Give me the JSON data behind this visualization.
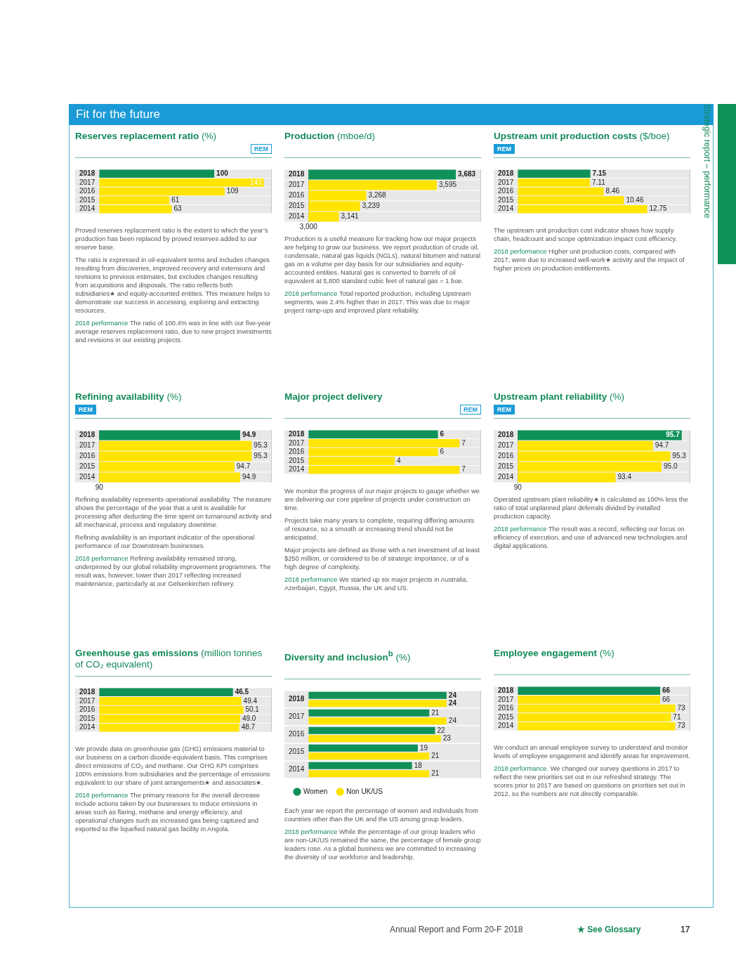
{
  "chart_data": [
    {
      "type": "other",
      "title": "Fit for the future",
      "annotations": [
        "Strategic report – performance",
        "Annual Report and Form 20-F 2018",
        "★ See Glossary",
        "17"
      ]
    },
    {
      "type": "bar",
      "orientation": "horizontal",
      "title": "Reserves replacement ratio",
      "subtitle": "(%)",
      "categories": [
        "2018",
        "2017",
        "2016",
        "2015",
        "2014"
      ],
      "values": [
        100,
        143,
        109,
        61,
        63
      ],
      "colors": [
        "#0f9158",
        "#ffe500",
        "#ffe500",
        "#ffe500",
        "#ffe500"
      ],
      "value_labels": [
        "100",
        "143",
        "109",
        "61",
        "63"
      ],
      "xlim": [
        0,
        150
      ],
      "tick_labels": "y",
      "annotations": [
        "REM",
        "Proved reserves replacement ratio is the extent to which the year’s production has been replaced by proved reserves added to our reserve base.",
        "The ratio is expressed in oil-equivalent terms and includes changes resulting from discoveries, improved recovery and extensions and revisions to previous estimates, but excludes changes resulting from acquisitions and disposals. The ratio reflects both subsidiaries★ and equity-accounted entities. This measure helps to demonstrate our success in accessing, exploring and extracting resources.",
        "2018 performance The ratio of 100.4% was in line with our five-year average reserves replacement ratio, due to new project investments and revisions in our existing projects."
      ]
    },
    {
      "type": "bar",
      "orientation": "horizontal",
      "title": "Production",
      "subtitle": "(mboe/d)",
      "categories": [
        "2018",
        "2017",
        "2016",
        "2015",
        "2014"
      ],
      "values": [
        3683,
        3595,
        3268,
        3239,
        3141
      ],
      "colors": [
        "#0f9158",
        "#ffe500",
        "#ffe500",
        "#ffe500",
        "#ffe500"
      ],
      "value_labels": [
        "3,683",
        "3,595",
        "3,268",
        "3,239",
        "3,141"
      ],
      "xlim": [
        3000,
        3800
      ],
      "tick_labels": "y",
      "annotations": [
        "3,000",
        "Production is a useful measure for tracking how our major projects are helping to grow our business. We report production of crude oil, condensate, natural gas liquids (NGLs), natural bitumen and natural gas on a volume per day basis for our subsidiaries and equity-accounted entities. Natural gas is converted to barrels of oil equivalent at 5,800 standard cubic feet of natural gas = 1 boe.",
        "2018 performance Total reported production, including Upstream segments, was 2.4% higher than in 2017. This was due to major project ramp-ups and improved plant reliability."
      ]
    },
    {
      "type": "bar",
      "orientation": "horizontal",
      "title": "Upstream unit production costs",
      "subtitle": "($/boe)",
      "categories": [
        "2018",
        "2017",
        "2016",
        "2015",
        "2014"
      ],
      "values": [
        7.15,
        7.11,
        8.46,
        10.46,
        12.75
      ],
      "colors": [
        "#0f9158",
        "#ffe500",
        "#ffe500",
        "#ffe500",
        "#ffe500"
      ],
      "value_labels": [
        "7.15",
        "7.11",
        "8.46",
        "10.46",
        "12.75"
      ],
      "xlim": [
        0,
        17
      ],
      "tick_labels": "y",
      "annotations": [
        "REM",
        "The upstream unit production cost indicator shows how supply chain, headcount and scope optimization impact cost efficiency.",
        "2018 performance Higher unit production costs, compared with 2017, were due to increased well-work★ activity and the impact of higher prices on production entitlements."
      ]
    },
    {
      "type": "bar",
      "orientation": "horizontal",
      "title": "Refining availability",
      "subtitle": "(%)",
      "categories": [
        "2018",
        "2017",
        "2016",
        "2015",
        "2014"
      ],
      "values": [
        94.9,
        95.3,
        95.3,
        94.7,
        94.9
      ],
      "colors": [
        "#0f9158",
        "#ffe500",
        "#ffe500",
        "#ffe500",
        "#ffe500"
      ],
      "value_labels": [
        "94.9",
        "95.3",
        "95.3",
        "94.7",
        "94.9"
      ],
      "xlim": [
        90,
        96
      ],
      "tick_labels": "y",
      "annotations": [
        "REM",
        "90",
        "Refining availability represents operational availability. The measure shows the percentage of the year that a unit is available for processing after deducting the time spent on turnaround activity and all mechanical, process and regulatory downtime.",
        "Refining availability is an important indicator of the operational performance of our Downstream businesses.",
        "2018 performance Refining availability remained strong, underpinned by our global reliability improvement programmes. The result was, however, lower than 2017 reflecting increased maintenance, particularly at our Gelsenkirchen refinery."
      ]
    },
    {
      "type": "bar",
      "orientation": "horizontal",
      "title": "Major project delivery",
      "categories": [
        "2018",
        "2017",
        "2016",
        "2015",
        "2014"
      ],
      "values": [
        6,
        7,
        6,
        4,
        7
      ],
      "colors": [
        "#0f9158",
        "#ffe500",
        "#ffe500",
        "#ffe500",
        "#ffe500"
      ],
      "value_labels": [
        "6",
        "7",
        "6",
        "4",
        "7"
      ],
      "xlim": [
        0,
        8
      ],
      "tick_labels": "y",
      "annotations": [
        "REM",
        "We monitor the progress of our major projects to gauge whether we are delivering our core pipeline of projects under construction on time.",
        "Projects take many years to complete, requiring differing amounts of resource, so a smooth or increasing trend should not be anticipated.",
        "Major projects are defined as those with a net investment of at least $250 million, or considered to be of strategic importance, or of a high degree of complexity.",
        "2018 performance We started up six major projects in Australia, Azerbaijan, Egypt, Russia, the UK and US."
      ]
    },
    {
      "type": "bar",
      "orientation": "horizontal",
      "title": "Upstream plant reliability",
      "subtitle": "(%)",
      "categories": [
        "2018",
        "2017",
        "2016",
        "2015",
        "2014"
      ],
      "values": [
        95.7,
        94.7,
        95.3,
        95.0,
        93.4
      ],
      "colors": [
        "#0f9158",
        "#ffe500",
        "#ffe500",
        "#ffe500",
        "#ffe500"
      ],
      "value_labels": [
        "95.7",
        "94.7",
        "95.3",
        "95.0",
        "93.4"
      ],
      "xlim": [
        90,
        96
      ],
      "tick_labels": "y",
      "annotations": [
        "REM",
        "90",
        "Operated upstream plant reliability★ is calculated as 100% less the ratio of total unplanned plant deferrals divided by installed production capacity.",
        "2018 performance The result was a record, reflecting our focus on efficiency of execution, and use of advanced new technologies and digital applications."
      ]
    },
    {
      "type": "bar",
      "orientation": "horizontal",
      "title": "Greenhouse gas emissions",
      "subtitle": "(million tonnes of CO₂ equivalent)",
      "categories": [
        "2018",
        "2017",
        "2016",
        "2015",
        "2014"
      ],
      "values": [
        46.5,
        49.4,
        50.1,
        49.0,
        48.7
      ],
      "colors": [
        "#0f9158",
        "#ffe500",
        "#ffe500",
        "#ffe500",
        "#ffe500"
      ],
      "value_labels": [
        "46.5",
        "49.4",
        "50.1",
        "49.0",
        "48.7"
      ],
      "xlim": [
        0,
        60
      ],
      "tick_labels": "y",
      "annotations": [
        "We provide data on greenhouse gas (GHG) emissions material to our business on a carbon dioxide-equivalent basis. This comprises direct emissions of CO₂ and methane. Our GHG KPI comprises 100% emissions from subsidiaries and the percentage of emissions equivalent to our share of joint arrangements★ and associates★.",
        "2018 performance The primary reasons for the overall decrease include actions taken by our businesses to reduce emissions in areas such as flaring, methane and energy efficiency, and operational changes such as increased gas being captured and exported to the liquefied natural gas facility in Angola."
      ]
    },
    {
      "type": "bar",
      "orientation": "horizontal",
      "title": "Diversity and inclusion$^{b}$",
      "subtitle": "(%)",
      "categories": [
        "2018",
        "2017",
        "2016",
        "2015",
        "2014"
      ],
      "legend": "bottom left",
      "xlim": [
        0,
        30
      ],
      "tick_labels": "y",
      "series": [
        {
          "name": "Women",
          "color": "#0f9158",
          "values": [
            24,
            21,
            22,
            19,
            18
          ],
          "value_labels": [
            "24",
            "21",
            "22",
            "19",
            "18"
          ]
        },
        {
          "name": "Non UK/US",
          "color": "#ffe500",
          "values": [
            24,
            24,
            23,
            21,
            21
          ],
          "value_labels": [
            "24",
            "24",
            "23",
            "21",
            "21"
          ]
        }
      ],
      "annotations": [
        "Each year we report the percentage of women and individuals from countries other than the UK and the US among group leaders.",
        "2018 performance While the percentage of our group leaders who are non-UK/US remained the same, the percentage of female group leaders rose. As a global business we are committed to increasing the diversity of our workforce and leadership."
      ]
    },
    {
      "type": "bar",
      "orientation": "horizontal",
      "title": "Employee engagement",
      "subtitle": "(%)",
      "categories": [
        "2018",
        "2017",
        "2016",
        "2015",
        "2014"
      ],
      "values": [
        66,
        66,
        73,
        71,
        73
      ],
      "colors": [
        "#0f9158",
        "#ffe500",
        "#ffe500",
        "#ffe500",
        "#ffe500"
      ],
      "value_labels": [
        "66",
        "66",
        "73",
        "71",
        "73"
      ],
      "xlim": [
        0,
        80
      ],
      "tick_labels": "y",
      "annotations": [
        "We conduct an annual employee survey to understand and monitor levels of employee engagement and identify areas for improvement.",
        "2018 performance. We changed our survey questions in 2017 to reflect the new priorities set out in our refreshed strategy. The scores prior to 2017 are based on questions on priorities set out in 2012, so the numbers are not directly comparable."
      ]
    }
  ]
}
